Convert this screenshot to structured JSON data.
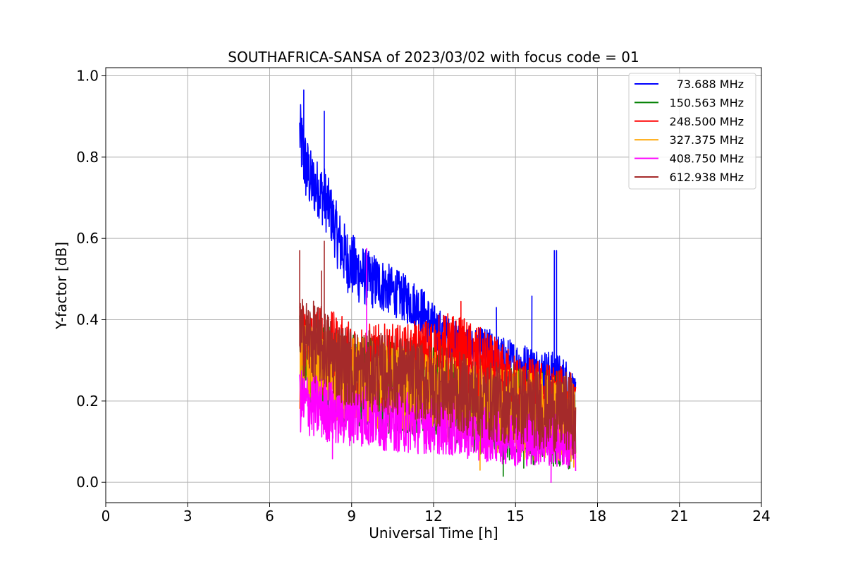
{
  "chart_data": {
    "type": "line",
    "title": "SOUTHAFRICA-SANSA of 2023/03/02 with focus code = 01",
    "xlabel": "Universal Time [h]",
    "ylabel": "Y-factor [dB]",
    "xlim": [
      0,
      24
    ],
    "ylim": [
      -0.05,
      1.02
    ],
    "xticks": [
      0,
      3,
      6,
      9,
      12,
      15,
      18,
      21,
      24
    ],
    "xtick_labels": [
      "0",
      "3",
      "6",
      "9",
      "12",
      "15",
      "18",
      "21",
      "24"
    ],
    "yticks": [
      0.0,
      0.2,
      0.4,
      0.6,
      0.8,
      1.0
    ],
    "ytick_labels": [
      "0.0",
      "0.2",
      "0.4",
      "0.6",
      "0.8",
      "1.0"
    ],
    "grid": true,
    "legend_position": "top-right",
    "series": [
      {
        "name": "73.688 MHz",
        "color": "#0000ff",
        "x": [
          7.1,
          7.2,
          7.3,
          7.5,
          7.8,
          8.0,
          8.2,
          8.5,
          8.8,
          9.2,
          9.6,
          10.0,
          10.5,
          11.0,
          11.5,
          12.0,
          12.5,
          13.0,
          13.5,
          14.0,
          14.5,
          15.0,
          15.5,
          16.0,
          16.5,
          17.0,
          17.2
        ],
        "values": [
          0.86,
          0.82,
          0.78,
          0.74,
          0.72,
          0.7,
          0.67,
          0.6,
          0.55,
          0.52,
          0.5,
          0.49,
          0.47,
          0.45,
          0.43,
          0.38,
          0.36,
          0.34,
          0.33,
          0.32,
          0.3,
          0.29,
          0.28,
          0.27,
          0.26,
          0.24,
          0.2
        ],
        "spread": [
          0.08,
          0.09,
          0.09,
          0.08,
          0.07,
          0.08,
          0.07,
          0.08,
          0.08,
          0.08,
          0.07,
          0.07,
          0.06,
          0.06,
          0.06,
          0.06,
          0.05,
          0.05,
          0.05,
          0.06,
          0.06,
          0.06,
          0.06,
          0.06,
          0.06,
          0.06,
          0.05
        ],
        "spikes": [
          {
            "x": 7.25,
            "y": 0.965
          },
          {
            "x": 8.0,
            "y": 0.913
          },
          {
            "x": 15.6,
            "y": 0.458
          },
          {
            "x": 16.42,
            "y": 0.57
          },
          {
            "x": 16.5,
            "y": 0.57
          },
          {
            "x": 14.3,
            "y": 0.43
          }
        ]
      },
      {
        "name": "150.563 MHz",
        "color": "#008000",
        "x": [
          7.1,
          7.5,
          8.0,
          9.0,
          10.0,
          11.0,
          12.0,
          13.0,
          14.0,
          15.0,
          16.0,
          17.0,
          17.2
        ],
        "values": [
          0.3,
          0.29,
          0.28,
          0.25,
          0.24,
          0.23,
          0.22,
          0.21,
          0.18,
          0.17,
          0.16,
          0.15,
          0.12
        ],
        "spread": [
          0.12,
          0.12,
          0.12,
          0.12,
          0.12,
          0.11,
          0.12,
          0.12,
          0.12,
          0.12,
          0.12,
          0.12,
          0.1
        ],
        "spikes": [
          {
            "x": 14.55,
            "y": 0.015
          },
          {
            "x": 15.3,
            "y": 0.035
          }
        ]
      },
      {
        "name": "248.500 MHz",
        "color": "#ff0000",
        "x": [
          7.1,
          7.5,
          8.0,
          9.0,
          10.0,
          11.0,
          12.0,
          12.5,
          13.0,
          14.0,
          15.0,
          16.0,
          17.0,
          17.2
        ],
        "values": [
          0.34,
          0.33,
          0.32,
          0.29,
          0.28,
          0.28,
          0.3,
          0.31,
          0.3,
          0.26,
          0.22,
          0.2,
          0.18,
          0.15
        ],
        "spread": [
          0.11,
          0.11,
          0.11,
          0.11,
          0.11,
          0.11,
          0.11,
          0.11,
          0.11,
          0.11,
          0.1,
          0.1,
          0.1,
          0.09
        ],
        "spikes": [
          {
            "x": 13.0,
            "y": 0.445
          }
        ]
      },
      {
        "name": "327.375 MHz",
        "color": "#ffa500",
        "x": [
          7.1,
          7.5,
          8.0,
          9.0,
          10.0,
          11.0,
          12.0,
          13.0,
          14.0,
          15.0,
          16.0,
          17.0,
          17.2
        ],
        "values": [
          0.29,
          0.28,
          0.27,
          0.25,
          0.24,
          0.23,
          0.22,
          0.2,
          0.18,
          0.17,
          0.16,
          0.15,
          0.12
        ],
        "spread": [
          0.11,
          0.11,
          0.11,
          0.11,
          0.11,
          0.11,
          0.11,
          0.11,
          0.11,
          0.11,
          0.11,
          0.11,
          0.1
        ],
        "spikes": [
          {
            "x": 13.7,
            "y": 0.03
          }
        ]
      },
      {
        "name": "408.750 MHz",
        "color": "#ff00ff",
        "x": [
          7.1,
          7.5,
          8.0,
          8.5,
          9.0,
          10.0,
          11.0,
          12.0,
          13.0,
          14.0,
          15.0,
          16.0,
          17.0,
          17.2
        ],
        "values": [
          0.2,
          0.19,
          0.18,
          0.17,
          0.17,
          0.16,
          0.15,
          0.14,
          0.13,
          0.12,
          0.11,
          0.11,
          0.1,
          0.09
        ],
        "spread": [
          0.08,
          0.08,
          0.08,
          0.08,
          0.08,
          0.08,
          0.08,
          0.07,
          0.07,
          0.07,
          0.07,
          0.07,
          0.07,
          0.07
        ],
        "spikes": [
          {
            "x": 9.55,
            "y": 0.575
          },
          {
            "x": 16.3,
            "y": 0.0
          },
          {
            "x": 8.3,
            "y": 0.058
          }
        ]
      },
      {
        "name": "612.938 MHz",
        "color": "#a52a2a",
        "x": [
          7.1,
          7.5,
          8.0,
          8.5,
          9.0,
          10.0,
          11.0,
          12.0,
          13.0,
          14.0,
          15.0,
          16.0,
          17.0,
          17.2
        ],
        "values": [
          0.36,
          0.35,
          0.33,
          0.3,
          0.28,
          0.27,
          0.26,
          0.24,
          0.22,
          0.2,
          0.19,
          0.18,
          0.17,
          0.14
        ],
        "spread": [
          0.1,
          0.1,
          0.1,
          0.1,
          0.1,
          0.1,
          0.1,
          0.1,
          0.1,
          0.1,
          0.1,
          0.1,
          0.1,
          0.09
        ],
        "spikes": [
          {
            "x": 7.1,
            "y": 0.57
          },
          {
            "x": 8.0,
            "y": 0.593
          },
          {
            "x": 7.9,
            "y": 0.52
          }
        ]
      }
    ]
  }
}
